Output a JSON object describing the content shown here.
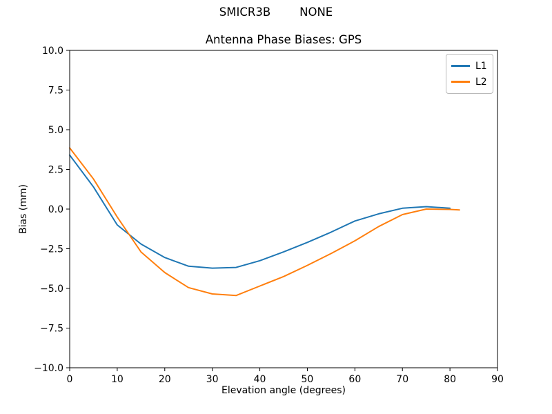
{
  "chart_data": {
    "type": "line",
    "suptitle": "SMICR3B        NONE",
    "title": "Antenna Phase Biases: GPS",
    "xlabel": "Elevation angle (degrees)",
    "ylabel": "Bias (mm)",
    "xlim": [
      0,
      90
    ],
    "ylim": [
      -10,
      10
    ],
    "grid": false,
    "background": "#ffffff",
    "axis_color": "#000000",
    "xticks": {
      "values": [
        0,
        10,
        20,
        30,
        40,
        50,
        60,
        70,
        80,
        90
      ],
      "labels": [
        "0",
        "10",
        "20",
        "30",
        "40",
        "50",
        "60",
        "70",
        "80",
        "90"
      ]
    },
    "yticks": {
      "values": [
        10,
        7.5,
        5,
        2.5,
        0,
        -2.5,
        -5,
        -7.5,
        -10
      ],
      "labels": [
        "10.0",
        "7.5",
        "5.0",
        "2.5",
        "0.0",
        "−2.5",
        "−5.0",
        "−7.5",
        "−10.0"
      ]
    },
    "legend": {
      "position": "upper right",
      "entries": [
        "L1",
        "L2"
      ]
    },
    "series": [
      {
        "name": "L1",
        "color": "#1f77b4",
        "x": [
          0,
          5,
          10,
          15,
          20,
          25,
          30,
          35,
          40,
          45,
          50,
          55,
          60,
          65,
          70,
          75,
          80
        ],
        "y": [
          3.4,
          1.4,
          -1.0,
          -2.2,
          -3.05,
          -3.6,
          -3.72,
          -3.68,
          -3.25,
          -2.7,
          -2.1,
          -1.45,
          -0.75,
          -0.3,
          0.05,
          0.15,
          0.05
        ]
      },
      {
        "name": "L2",
        "color": "#ff7f0e",
        "x": [
          0,
          5,
          10,
          15,
          20,
          25,
          30,
          35,
          40,
          45,
          50,
          55,
          60,
          65,
          70,
          75,
          80,
          82
        ],
        "y": [
          3.85,
          1.9,
          -0.5,
          -2.7,
          -4.0,
          -4.95,
          -5.35,
          -5.45,
          -4.85,
          -4.25,
          -3.55,
          -2.8,
          -2.0,
          -1.1,
          -0.35,
          0.0,
          -0.02,
          -0.05
        ]
      }
    ]
  }
}
